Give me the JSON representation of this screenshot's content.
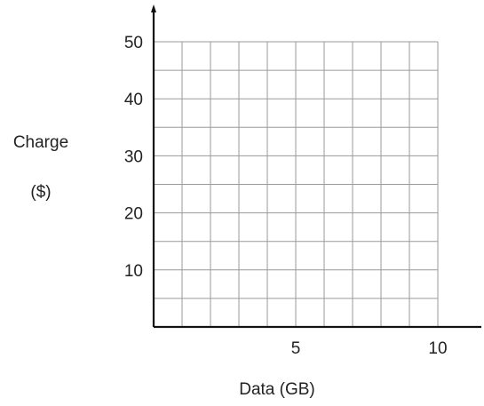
{
  "chart_data": {
    "type": "scatter",
    "ylabel_line1": "Charge",
    "ylabel_line2": "($)",
    "xlabel": "Data (GB)",
    "xlim": [
      0,
      10
    ],
    "ylim": [
      0,
      50
    ],
    "x_grid_step": 1,
    "y_grid_step": 5,
    "x_tick_labels": [
      {
        "value": 5,
        "label": "5"
      },
      {
        "value": 10,
        "label": "10"
      }
    ],
    "y_tick_labels": [
      {
        "value": 10,
        "label": "10"
      },
      {
        "value": 20,
        "label": "20"
      },
      {
        "value": 30,
        "label": "30"
      },
      {
        "value": 40,
        "label": "40"
      },
      {
        "value": 50,
        "label": "50"
      }
    ],
    "grid": true,
    "series": []
  }
}
